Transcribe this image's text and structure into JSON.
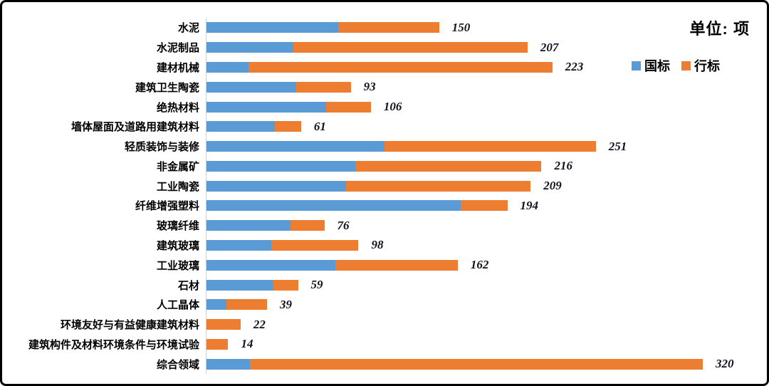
{
  "title": "单位: 项",
  "legend": [
    {
      "label": "国标",
      "color": "#5B9BD5"
    },
    {
      "label": "行标",
      "color": "#ED7D31"
    }
  ],
  "colors": {
    "guobiao": "#5B9BD5",
    "hangbiao": "#ED7D31",
    "axis_line": "#CFCFCF",
    "text": "#000000",
    "frame_border": "#000000",
    "background": "#FFFFFF"
  },
  "chart_data": {
    "type": "bar",
    "orientation": "horizontal",
    "stacked": true,
    "title": "单位: 项",
    "xlabel": "",
    "ylabel": "",
    "xlim": [
      0,
      320
    ],
    "grid": false,
    "legend_position": "top-right",
    "data_label_style": "bold-italic-total-at-bar-end",
    "categories": [
      "水泥",
      "水泥制品",
      "建材机械",
      "建筑卫生陶瓷",
      "绝热材料",
      "墙体屋面及道路用建筑材料",
      "轻质装饰与装修",
      "非金属矿",
      "工业陶瓷",
      "纤维增强塑料",
      "玻璃纤维",
      "建筑玻璃",
      "工业玻璃",
      "石材",
      "人工晶体",
      "环境友好与有益健康建筑材料",
      "建筑构件及材料环境条件与环境试验",
      "综合领域"
    ],
    "series": [
      {
        "name": "国标",
        "color": "#5B9BD5",
        "values": [
          85,
          56,
          27,
          58,
          77,
          44,
          115,
          96,
          90,
          164,
          54,
          42,
          83,
          43,
          13,
          0,
          0,
          28
        ]
      },
      {
        "name": "行标",
        "color": "#ED7D31",
        "values": [
          65,
          151,
          196,
          35,
          29,
          17,
          136,
          120,
          119,
          30,
          22,
          56,
          79,
          16,
          26,
          22,
          14,
          292
        ]
      }
    ],
    "totals": [
      150,
      207,
      223,
      93,
      106,
      61,
      251,
      216,
      209,
      194,
      76,
      98,
      162,
      59,
      39,
      22,
      14,
      320
    ]
  }
}
